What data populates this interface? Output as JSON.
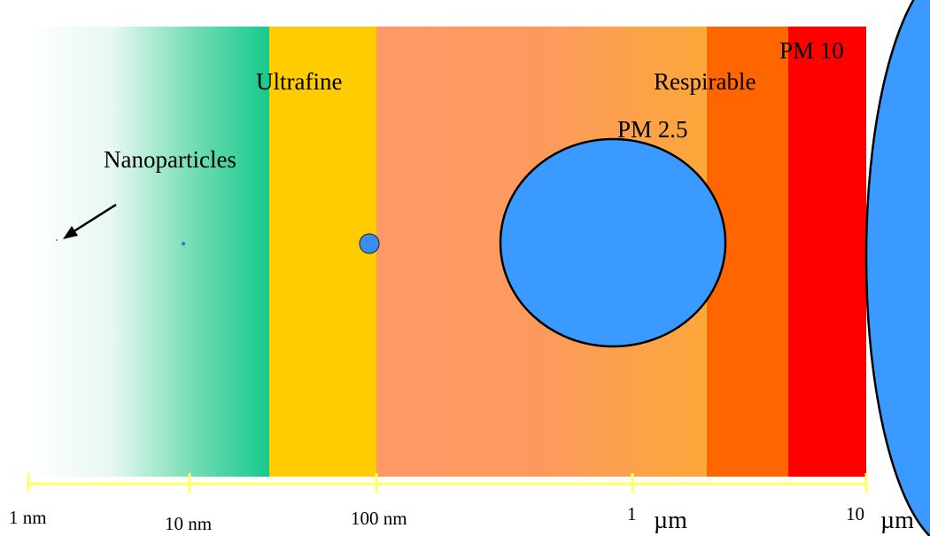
{
  "regions": [
    {
      "key": "nanoparticles",
      "label": "Nanoparticles"
    },
    {
      "key": "ultrafine",
      "label": "Ultrafine"
    },
    {
      "key": "pm25",
      "label": "PM 2.5"
    },
    {
      "key": "respirable",
      "label": "Respirable"
    },
    {
      "key": "pm10",
      "label": "PM 10"
    }
  ],
  "scale": {
    "ticks": [
      "1 nm",
      "10 nm",
      "100 nm",
      "1",
      "10"
    ],
    "unit": "µm"
  },
  "colors": {
    "green": "#1ecb8f",
    "ultrafine": "#ffcc00",
    "pm25_start": "#fc9a66",
    "pm25_end": "#fca53c",
    "respirable": "#ff6600",
    "pm10": "#ff0000",
    "particle": "#3a9aff",
    "scale_line": "#ffff66"
  }
}
